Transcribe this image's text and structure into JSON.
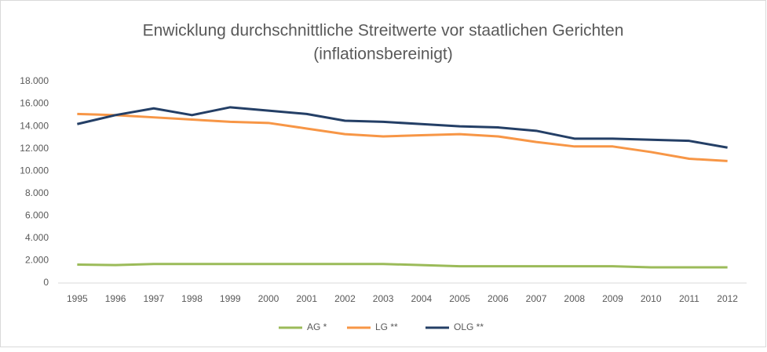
{
  "chart_data": {
    "type": "line",
    "title": [
      "Enwicklung durchschnittliche Streitwerte vor staatlichen Gerichten",
      "(inflationsbereinigt)"
    ],
    "categories": [
      "1995",
      "1996",
      "1997",
      "1998",
      "1999",
      "2000",
      "2001",
      "2002",
      "2003",
      "2004",
      "2005",
      "2006",
      "2007",
      "2008",
      "2009",
      "2010",
      "2011",
      "2012"
    ],
    "series": [
      {
        "name": "AG *",
        "color": "#9bbb59",
        "values": [
          1650,
          1600,
          1700,
          1700,
          1700,
          1700,
          1700,
          1700,
          1700,
          1600,
          1500,
          1500,
          1500,
          1500,
          1500,
          1400,
          1400,
          1400
        ]
      },
      {
        "name": "LG **",
        "color": "#f79646",
        "values": [
          15100,
          15000,
          14800,
          14600,
          14400,
          14300,
          13800,
          13300,
          13100,
          13200,
          13300,
          13100,
          12600,
          12200,
          12200,
          11700,
          11100,
          10900
        ]
      },
      {
        "name": "OLG **",
        "color": "#243f66",
        "values": [
          14200,
          15000,
          15600,
          15000,
          15700,
          15400,
          15100,
          14500,
          14400,
          14200,
          14000,
          13900,
          13600,
          12900,
          12900,
          12800,
          12700,
          12100
        ]
      }
    ],
    "ylim": [
      0,
      18000
    ],
    "yticks": [
      0,
      {
        "value": 2000,
        "label": "2.000"
      },
      {
        "value": 4000,
        "label": "4.000"
      },
      {
        "value": 6000,
        "label": "6.000"
      },
      {
        "value": 8000,
        "label": "8.000"
      },
      {
        "value": 10000,
        "label": "10.000"
      },
      {
        "value": 12000,
        "label": "12.000"
      },
      {
        "value": 14000,
        "label": "14.000"
      },
      {
        "value": 16000,
        "label": "16.000"
      },
      {
        "value": 18000,
        "label": "18.000"
      }
    ],
    "grid": false,
    "legend": "bottom"
  }
}
